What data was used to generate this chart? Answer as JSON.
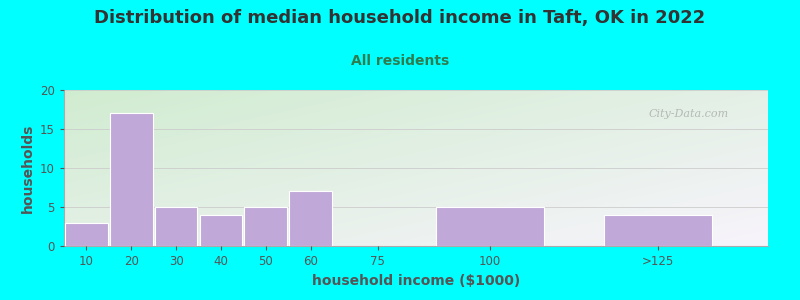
{
  "title": "Distribution of median household income in Taft, OK in 2022",
  "subtitle": "All residents",
  "xlabel": "household income ($1000)",
  "ylabel": "households",
  "background_color": "#00FFFF",
  "bar_color": "#c0a8d8",
  "bar_edge_color": "#ffffff",
  "values": [
    3,
    17,
    5,
    4,
    5,
    7,
    0,
    5,
    4
  ],
  "bar_positions": [
    10,
    20,
    30,
    40,
    50,
    60,
    75,
    100,
    137.5
  ],
  "bar_widths": [
    9.5,
    9.5,
    9.5,
    9.5,
    9.5,
    9.5,
    9.5,
    24,
    24
  ],
  "xlim": [
    5,
    162
  ],
  "ylim": [
    0,
    20
  ],
  "yticks": [
    0,
    5,
    10,
    15,
    20
  ],
  "xtick_labels": [
    "10",
    "20",
    "30",
    "40",
    "50",
    "60",
    "75",
    "100",
    ">125"
  ],
  "xtick_positions": [
    10,
    20,
    30,
    40,
    50,
    60,
    75,
    100,
    137.5
  ],
  "grid_color": "#cccccc",
  "title_color": "#333333",
  "subtitle_color": "#2e7d4f",
  "axis_label_color": "#555555",
  "tick_color": "#555555",
  "watermark_text": "City-Data.com",
  "title_fontsize": 13,
  "subtitle_fontsize": 10,
  "axis_label_fontsize": 10,
  "gradient_colors": [
    "#d8edd8",
    "#f8f5fc"
  ],
  "gradient_corner_tl": "#cce8cc",
  "gradient_corner_br": "#f2eef8"
}
